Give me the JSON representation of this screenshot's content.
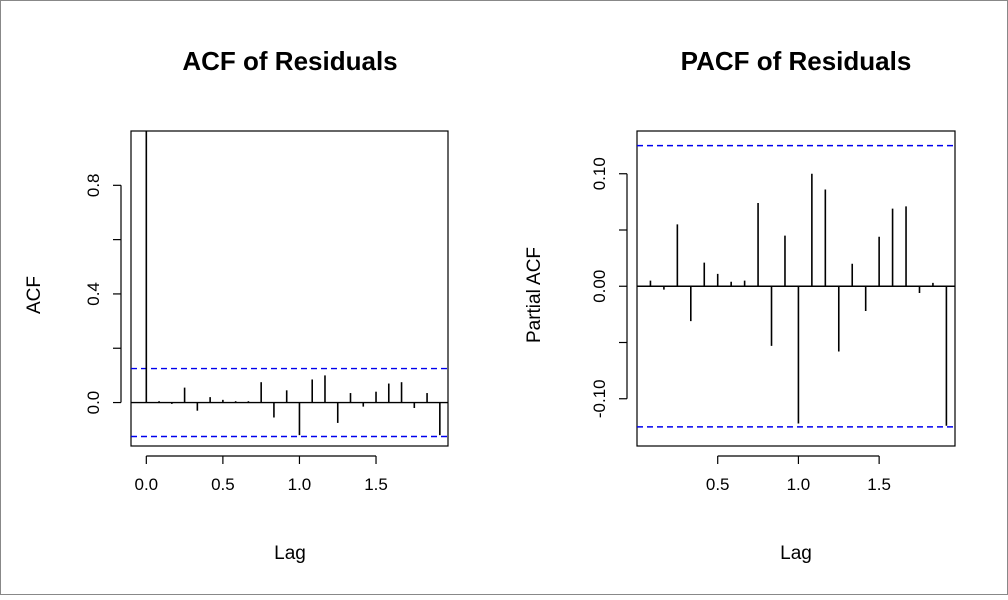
{
  "colors": {
    "bar": "#000000",
    "ci": "#0000ee",
    "frame": "#000000",
    "background": "#ffffff"
  },
  "chart_data": [
    {
      "type": "bar",
      "title": "ACF of Residuals",
      "xlabel": "Lag",
      "ylabel": "ACF",
      "xlim": [
        -0.1,
        1.97
      ],
      "ylim": [
        -0.16,
        1.0
      ],
      "xticks": [
        0.0,
        0.5,
        1.0,
        1.5
      ],
      "xtick_labels": [
        "0.0",
        "0.5",
        "1.0",
        "1.5"
      ],
      "yticks": [
        0.0,
        0.4,
        0.8
      ],
      "ytick_labels": [
        "0.0",
        "0.4",
        "0.8"
      ],
      "yticks_minor": [
        0.2,
        0.6
      ],
      "zero_line": true,
      "ci": [
        0.125,
        -0.125
      ],
      "x": [
        0.0,
        0.0833,
        0.1667,
        0.25,
        0.3333,
        0.4167,
        0.5,
        0.5833,
        0.6667,
        0.75,
        0.8333,
        0.9167,
        1.0,
        1.0833,
        1.1667,
        1.25,
        1.3333,
        1.4167,
        1.5,
        1.5833,
        1.6667,
        1.75,
        1.8333,
        1.9167
      ],
      "values": [
        1.0,
        0.005,
        -0.005,
        0.055,
        -0.03,
        0.02,
        0.01,
        0.005,
        0.005,
        0.075,
        -0.055,
        0.045,
        -0.12,
        0.085,
        0.1,
        -0.075,
        0.035,
        -0.015,
        0.04,
        0.07,
        0.075,
        -0.02,
        0.035,
        -0.12
      ]
    },
    {
      "type": "bar",
      "title": "PACF of Residuals",
      "xlabel": "Lag",
      "ylabel": "Partial ACF",
      "xlim": [
        0.0,
        1.97
      ],
      "ylim": [
        -0.142,
        0.138
      ],
      "xticks": [
        0.5,
        1.0,
        1.5
      ],
      "xtick_labels": [
        "0.5",
        "1.0",
        "1.5"
      ],
      "yticks": [
        -0.1,
        0.0,
        0.1
      ],
      "ytick_labels": [
        "-0.10",
        "0.00",
        "0.10"
      ],
      "yticks_minor": [
        -0.05,
        0.05
      ],
      "zero_line": true,
      "ci": [
        0.125,
        -0.125
      ],
      "x": [
        0.0833,
        0.1667,
        0.25,
        0.3333,
        0.4167,
        0.5,
        0.5833,
        0.6667,
        0.75,
        0.8333,
        0.9167,
        1.0,
        1.0833,
        1.1667,
        1.25,
        1.3333,
        1.4167,
        1.5,
        1.5833,
        1.6667,
        1.75,
        1.8333,
        1.9167
      ],
      "values": [
        0.005,
        -0.003,
        0.055,
        -0.031,
        0.021,
        0.011,
        0.004,
        0.005,
        0.074,
        -0.053,
        0.045,
        -0.122,
        0.1,
        0.086,
        -0.058,
        0.02,
        -0.022,
        0.044,
        0.069,
        0.071,
        -0.006,
        0.003,
        -0.124
      ]
    }
  ]
}
